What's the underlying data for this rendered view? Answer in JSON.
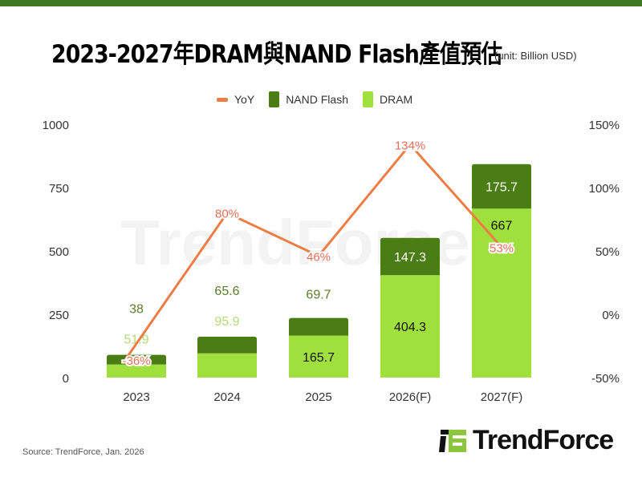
{
  "header": {
    "title": "2023-2027年DRAM與NAND Flash產值預估",
    "unit": "(unit: Billion USD)"
  },
  "chart_data": {
    "type": "bar",
    "stacked": true,
    "title": "2023-2027年DRAM與NAND Flash產值預估",
    "subtitle": "(unit: Billion USD)",
    "categories": [
      "2023",
      "2024",
      "2025",
      "2026(F)",
      "2027(F)"
    ],
    "series": [
      {
        "name": "DRAM",
        "type": "bar",
        "color": "#9fe03c",
        "values": [
          51.9,
          95.9,
          165.7,
          404.3,
          667
        ]
      },
      {
        "name": "NAND Flash",
        "type": "bar",
        "color": "#4a7d14",
        "values": [
          38,
          65.6,
          69.7,
          147.3,
          175.7
        ]
      },
      {
        "name": "YoY",
        "type": "line",
        "axis": "right",
        "color": "#ed7d44",
        "values": [
          -36,
          80,
          46,
          134,
          53
        ],
        "labels": [
          "-36%",
          "80%",
          "46%",
          "134%",
          "53%"
        ]
      }
    ],
    "legend": [
      "YoY",
      "NAND Flash",
      "DRAM"
    ],
    "legend_position": "top",
    "ylim": [
      0,
      1000
    ],
    "yticks": [
      "0",
      "250",
      "500",
      "750",
      "1000"
    ],
    "y2lim": [
      -50,
      150
    ],
    "y2ticks": [
      "-50%",
      "0%",
      "50%",
      "100%",
      "150%"
    ],
    "grid": false
  },
  "footer": {
    "source": "Source: TrendForce, Jan. 2026",
    "logo": "TrendForce",
    "watermark": "TrendForce"
  }
}
